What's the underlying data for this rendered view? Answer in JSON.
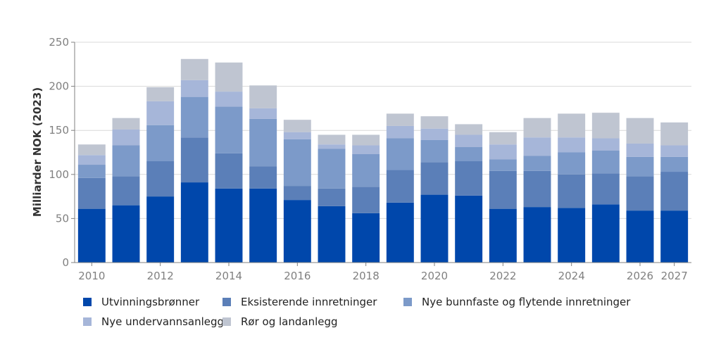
{
  "chart_data": {
    "type": "bar",
    "stacked": true,
    "categories": [
      "2010",
      "2011",
      "2012",
      "2013",
      "2014",
      "2015",
      "2016",
      "2017",
      "2018",
      "2019",
      "2020",
      "2021",
      "2022",
      "2023",
      "2024",
      "2025",
      "2026",
      "2027"
    ],
    "x_tick_labels": [
      "2010",
      "2012",
      "2014",
      "2016",
      "2018",
      "2020",
      "2022",
      "2024",
      "2026",
      "2027"
    ],
    "ylabel": "Milliarder NOK (2023)",
    "ylim": [
      0,
      250
    ],
    "yticks": [
      0,
      50,
      100,
      150,
      200,
      250
    ],
    "grid": true,
    "legend_position": "bottom",
    "series": [
      {
        "name": "Utvinningsbrønner",
        "color": "#0047AB",
        "values": [
          61,
          65,
          75,
          91,
          84,
          84,
          71,
          64,
          56,
          68,
          77,
          76,
          61,
          63,
          62,
          66,
          59,
          59
        ]
      },
      {
        "name": "Eksisterende innretninger",
        "color": "#5B7FB8",
        "values": [
          35,
          33,
          40,
          51,
          40,
          25,
          16,
          20,
          30,
          37,
          37,
          39,
          43,
          41,
          38,
          35,
          39,
          44
        ]
      },
      {
        "name": "Nye bunnfaste og flytende innretninger",
        "color": "#7C9AC9",
        "values": [
          15,
          35,
          41,
          46,
          53,
          54,
          53,
          45,
          37,
          36,
          25,
          16,
          13,
          17,
          25,
          26,
          22,
          17
        ]
      },
      {
        "name": "Nye undervannsanlegg",
        "color": "#A6B6D9",
        "values": [
          11,
          18,
          27,
          19,
          17,
          12,
          8,
          5,
          10,
          14,
          13,
          14,
          17,
          21,
          17,
          14,
          15,
          13
        ]
      },
      {
        "name": "Rør og landanlegg",
        "color": "#BFC5D1",
        "values": [
          12,
          13,
          16,
          24,
          33,
          26,
          14,
          11,
          12,
          14,
          14,
          12,
          14,
          22,
          27,
          29,
          29,
          26
        ]
      }
    ]
  }
}
